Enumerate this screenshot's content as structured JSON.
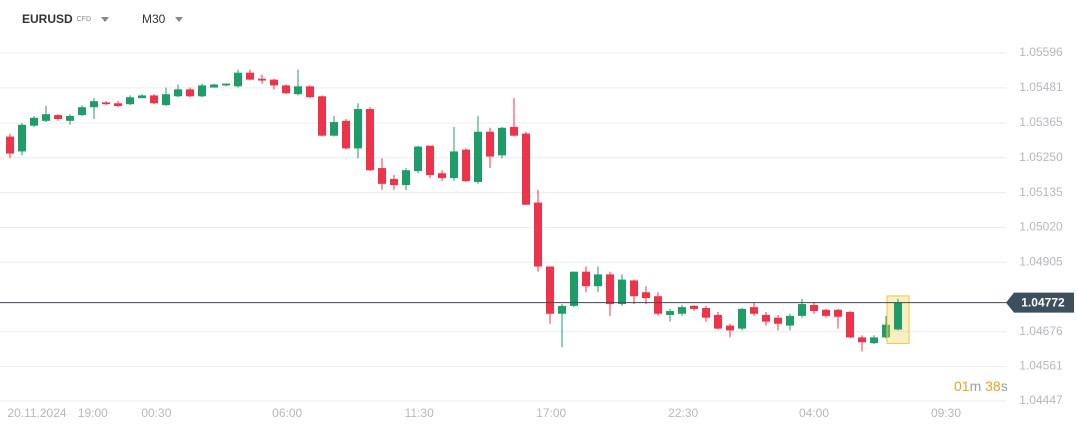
{
  "header": {
    "symbol": "EURUSD",
    "symbol_type": "CFD",
    "timeframe": "M30"
  },
  "countdown": {
    "minutes": "01",
    "minutes_unit": "m",
    "seconds": "38",
    "seconds_unit": "s"
  },
  "chart_data": {
    "type": "candlestick",
    "up_color": "#1f9d68",
    "down_color": "#ee3448",
    "open": [
      1.0532,
      1.05271,
      1.05356,
      1.05372,
      1.05391,
      1.05372,
      1.05391,
      1.05417,
      1.05433,
      1.0543,
      1.05427,
      1.05447,
      1.05456,
      1.05424,
      1.05453,
      1.05476,
      1.05453,
      1.05482,
      1.05489,
      1.05486,
      1.05531,
      1.05511,
      1.05508,
      1.05489,
      1.0546,
      1.05486,
      1.05453,
      1.05323,
      1.05372,
      1.05281,
      1.05411,
      1.05216,
      1.0518,
      1.0516,
      1.05206,
      1.0529,
      1.05199,
      1.05183,
      1.05277,
      1.0517,
      1.05336,
      1.05258,
      1.05352,
      1.0533,
      1.05102,
      1.04891,
      1.04735,
      1.04761,
      1.04874,
      1.04826,
      1.04865,
      1.04767,
      1.04845,
      1.04806,
      1.04793,
      1.04731,
      1.04735,
      1.04761,
      1.04754,
      1.04731,
      1.04696,
      1.04686,
      1.04757,
      1.04731,
      1.04722,
      1.04696,
      1.04728,
      1.04764,
      1.04748,
      1.04748,
      1.04741,
      1.04657,
      1.04638,
      1.04657,
      1.04683
    ],
    "high": [
      1.0533,
      1.05365,
      1.05388,
      1.05421,
      1.05394,
      1.05394,
      1.05424,
      1.05447,
      1.05437,
      1.05437,
      1.05456,
      1.0546,
      1.0546,
      1.05482,
      1.05492,
      1.05482,
      1.05495,
      1.05495,
      1.05495,
      1.05541,
      1.05541,
      1.05524,
      1.05511,
      1.05492,
      1.05541,
      1.05489,
      1.05456,
      1.05388,
      1.05378,
      1.0543,
      1.05417,
      1.05248,
      1.05193,
      1.05216,
      1.0529,
      1.0529,
      1.05209,
      1.05352,
      1.05281,
      1.05388,
      1.05349,
      1.05352,
      1.05447,
      1.05336,
      1.05144,
      1.04891,
      1.04767,
      1.04874,
      1.04891,
      1.04891,
      1.04874,
      1.04865,
      1.04848,
      1.04826,
      1.04806,
      1.04751,
      1.04764,
      1.04764,
      1.04761,
      1.04741,
      1.04702,
      1.04754,
      1.04774,
      1.04741,
      1.04731,
      1.04735,
      1.04784,
      1.04774,
      1.04751,
      1.04751,
      1.04744,
      1.04664,
      1.04664,
      1.04728,
      1.04784
    ],
    "low": [
      1.05248,
      1.05258,
      1.05352,
      1.05368,
      1.05372,
      1.05359,
      1.05388,
      1.05378,
      1.05424,
      1.05417,
      1.05424,
      1.05447,
      1.05427,
      1.05421,
      1.0545,
      1.0545,
      1.0545,
      1.05482,
      1.05486,
      1.05482,
      1.05505,
      1.05495,
      1.05476,
      1.0546,
      1.05456,
      1.05447,
      1.0532,
      1.0532,
      1.05277,
      1.05248,
      1.05206,
      1.05144,
      1.05144,
      1.05144,
      1.05199,
      1.05183,
      1.05173,
      1.05173,
      1.0517,
      1.05164,
      1.05216,
      1.05248,
      1.0532,
      1.05095,
      1.04874,
      1.04702,
      1.04624,
      1.04757,
      1.04806,
      1.04806,
      1.04728,
      1.04761,
      1.04767,
      1.04767,
      1.04728,
      1.04709,
      1.04728,
      1.04744,
      1.04709,
      1.04683,
      1.04657,
      1.0468,
      1.04728,
      1.04696,
      1.0468,
      1.0468,
      1.04722,
      1.04735,
      1.04722,
      1.04686,
      1.04654,
      1.04611,
      1.04635,
      1.04654,
      1.0468
    ],
    "close": [
      1.05264,
      1.05359,
      1.05382,
      1.05394,
      1.05378,
      1.05388,
      1.05417,
      1.05437,
      1.05427,
      1.05421,
      1.0545,
      1.05456,
      1.0543,
      1.0546,
      1.05476,
      1.05453,
      1.05489,
      1.05492,
      1.05495,
      1.05531,
      1.05508,
      1.05505,
      1.05489,
      1.05463,
      1.05486,
      1.0545,
      1.05323,
      1.05368,
      1.05281,
      1.05411,
      1.05209,
      1.05164,
      1.0516,
      1.05209,
      1.05287,
      1.05193,
      1.05183,
      1.05271,
      1.05173,
      1.05336,
      1.05254,
      1.05349,
      1.05323,
      1.05095,
      1.04891,
      1.04735,
      1.04761,
      1.04874,
      1.04826,
      1.04865,
      1.04767,
      1.04848,
      1.04793,
      1.04787,
      1.04735,
      1.04744,
      1.04757,
      1.04751,
      1.04722,
      1.04686,
      1.0468,
      1.04751,
      1.04735,
      1.04709,
      1.04702,
      1.04728,
      1.04767,
      1.04744,
      1.04728,
      1.04725,
      1.04657,
      1.04641,
      1.04657,
      1.04699,
      1.04772
    ],
    "last_price": 1.04772,
    "xlim": [
      -0.5,
      83
    ],
    "xticks": [
      {
        "value": 2.25,
        "label": "20.11.2024"
      },
      {
        "value": 6.9,
        "label": "19:00"
      },
      {
        "value": 12.2,
        "label": "00:30"
      },
      {
        "value": 23.1,
        "label": "06:00"
      },
      {
        "value": 34.1,
        "label": "11:30"
      },
      {
        "value": 45.1,
        "label": "17:00"
      },
      {
        "value": 56.1,
        "label": "22:30"
      },
      {
        "value": 67,
        "label": "04:00"
      },
      {
        "value": 78,
        "label": "09:30"
      }
    ],
    "ylim": [
      1.04447,
      1.05596
    ],
    "yticks": [
      1.05596,
      1.05481,
      1.05365,
      {
        "value": 1.0525,
        "label": "1.05250"
      },
      1.05135,
      {
        "value": 1.0502,
        "label": "1.05020"
      },
      1.04905,
      1.04676,
      1.04561,
      1.04447
    ],
    "grid": true
  }
}
